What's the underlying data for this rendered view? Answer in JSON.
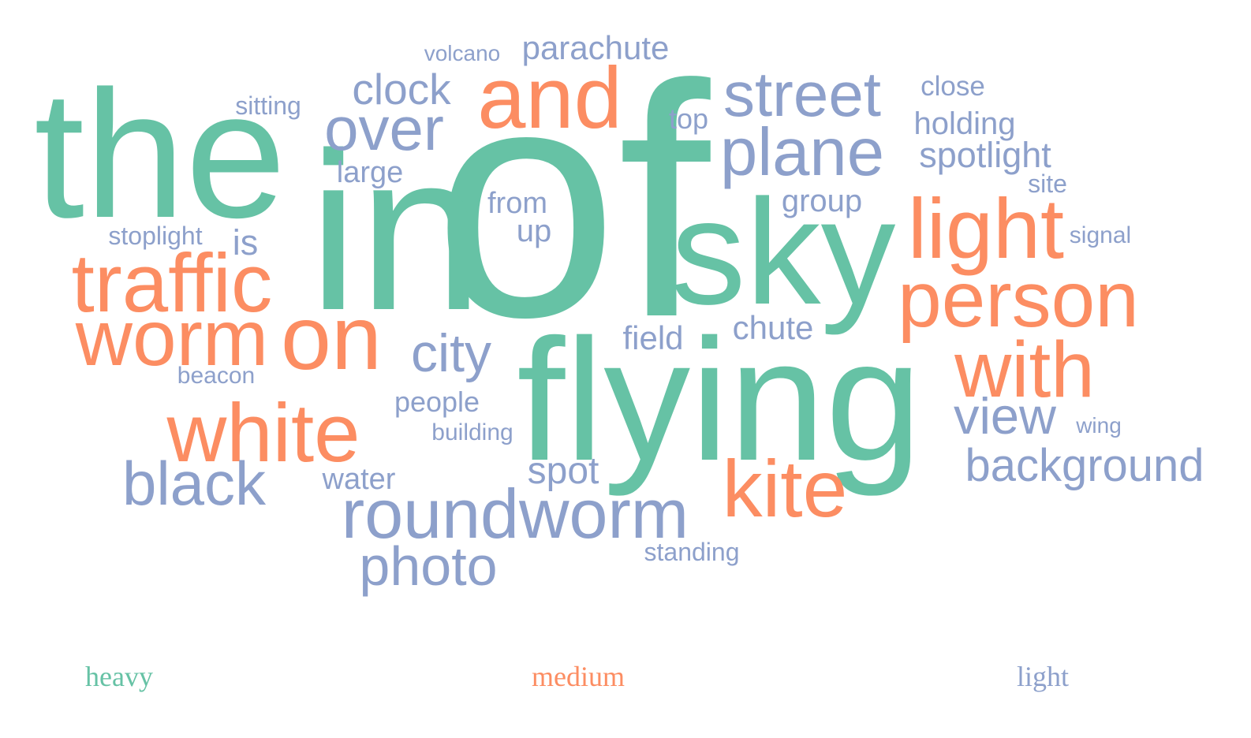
{
  "colors": {
    "heavy": "#66c2a5",
    "medium": "#fc8d62",
    "light": "#8da0cb"
  },
  "legend": {
    "heavy": "heavy",
    "medium": "medium",
    "light": "light"
  },
  "words": [
    {
      "text": "of",
      "group": "heavy"
    },
    {
      "text": "in",
      "group": "heavy"
    },
    {
      "text": "the",
      "group": "heavy"
    },
    {
      "text": "flying",
      "group": "heavy"
    },
    {
      "text": "sky",
      "group": "heavy"
    },
    {
      "text": "and",
      "group": "medium"
    },
    {
      "text": "light",
      "group": "medium"
    },
    {
      "text": "traffic",
      "group": "medium"
    },
    {
      "text": "person",
      "group": "medium"
    },
    {
      "text": "worm",
      "group": "medium"
    },
    {
      "text": "on",
      "group": "medium"
    },
    {
      "text": "with",
      "group": "medium"
    },
    {
      "text": "white",
      "group": "medium"
    },
    {
      "text": "kite",
      "group": "medium"
    },
    {
      "text": "volcano",
      "group": "light"
    },
    {
      "text": "parachute",
      "group": "light"
    },
    {
      "text": "clock",
      "group": "light"
    },
    {
      "text": "street",
      "group": "light"
    },
    {
      "text": "close",
      "group": "light"
    },
    {
      "text": "sitting",
      "group": "light"
    },
    {
      "text": "over",
      "group": "light"
    },
    {
      "text": "top",
      "group": "light"
    },
    {
      "text": "holding",
      "group": "light"
    },
    {
      "text": "plane",
      "group": "light"
    },
    {
      "text": "spotlight",
      "group": "light"
    },
    {
      "text": "large",
      "group": "light"
    },
    {
      "text": "site",
      "group": "light"
    },
    {
      "text": "from",
      "group": "light"
    },
    {
      "text": "group",
      "group": "light"
    },
    {
      "text": "stoplight",
      "group": "light"
    },
    {
      "text": "is",
      "group": "light"
    },
    {
      "text": "up",
      "group": "light"
    },
    {
      "text": "signal",
      "group": "light"
    },
    {
      "text": "city",
      "group": "light"
    },
    {
      "text": "field",
      "group": "light"
    },
    {
      "text": "chute",
      "group": "light"
    },
    {
      "text": "beacon",
      "group": "light"
    },
    {
      "text": "people",
      "group": "light"
    },
    {
      "text": "view",
      "group": "light"
    },
    {
      "text": "wing",
      "group": "light"
    },
    {
      "text": "building",
      "group": "light"
    },
    {
      "text": "black",
      "group": "light"
    },
    {
      "text": "water",
      "group": "light"
    },
    {
      "text": "spot",
      "group": "light"
    },
    {
      "text": "background",
      "group": "light"
    },
    {
      "text": "roundworm",
      "group": "light"
    },
    {
      "text": "standing",
      "group": "light"
    },
    {
      "text": "photo",
      "group": "light"
    }
  ]
}
